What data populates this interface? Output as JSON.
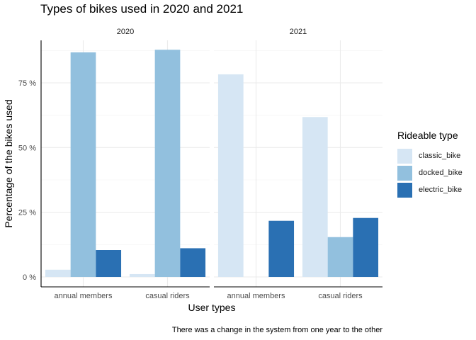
{
  "chart_data": {
    "type": "bar",
    "title": "Types of bikes used in 2020 and 2021",
    "xlabel": "User types",
    "ylabel": "Percentage of the bikes used",
    "caption": "There was a change in the system from one year to the other",
    "legend_title": "Rideable type",
    "legend_position": "right",
    "ylim": [
      0,
      92
    ],
    "yticks": [
      0,
      25,
      50,
      75
    ],
    "ytick_labels": [
      "0 %",
      "25 %",
      "50 %",
      "75 %"
    ],
    "categories": [
      "annual members",
      "casual riders"
    ],
    "series_names": [
      "classic_bike",
      "docked_bike",
      "electric_bike"
    ],
    "series_colors": [
      "#d6e6f4",
      "#92c0de",
      "#2a70b3"
    ],
    "facets": [
      {
        "label": "2020",
        "values": [
          [
            2.8,
            86.8,
            10.4
          ],
          [
            1.1,
            87.8,
            11.1
          ]
        ]
      },
      {
        "label": "2021",
        "values": [
          [
            78.3,
            0,
            21.7
          ],
          [
            61.8,
            15.4,
            22.8
          ]
        ]
      }
    ],
    "grid": true
  }
}
